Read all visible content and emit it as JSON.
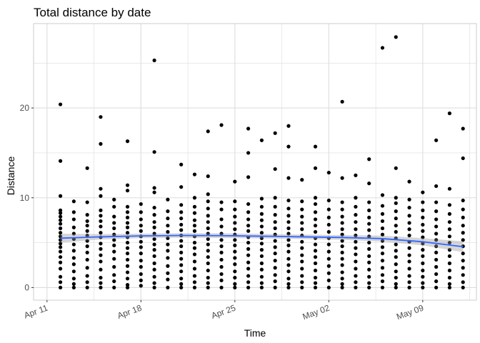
{
  "chart_data": {
    "type": "scatter",
    "title": "Total distance by date",
    "xlabel": "Time",
    "ylabel": "Distance",
    "x_ticks": [
      "Apr 11",
      "Apr 18",
      "Apr 25",
      "May 02",
      "May 09"
    ],
    "x_tick_dates": [
      "2016-04-11",
      "2016-04-18",
      "2016-04-25",
      "2016-05-02",
      "2016-05-09"
    ],
    "y_ticks": [
      0,
      10,
      20
    ],
    "xlim": [
      "2016-04-10",
      "2016-05-13"
    ],
    "ylim": [
      -1.4,
      29.4
    ],
    "grid": true,
    "theme": "light",
    "colors": {
      "points": "#000000",
      "smooth_line": "#3366FF",
      "confidence_band": "#999999",
      "grid": "#dddddd",
      "panel_border": "#cccccc"
    },
    "series": [
      {
        "name": "",
        "kind": "points",
        "date_values": [
          {
            "date": "2016-04-12",
            "y": [
              0,
              0.6,
              1.2,
              2.1,
              2.8,
              3.4,
              4.0,
              4.5,
              4.9,
              5.3,
              5.7,
              6.1,
              6.6,
              7.1,
              7.5,
              7.9,
              8.3,
              8.6,
              10.2,
              14.1,
              20.4
            ]
          },
          {
            "date": "2016-04-13",
            "y": [
              0,
              0.4,
              1.0,
              1.8,
              2.6,
              3.3,
              4.1,
              4.8,
              5.4,
              6.0,
              6.7,
              7.6,
              8.4,
              9.6
            ]
          },
          {
            "date": "2016-04-14",
            "y": [
              0,
              0.6,
              1.3,
              2.2,
              3.1,
              3.9,
              4.6,
              5.2,
              5.8,
              6.3,
              6.9,
              7.4,
              8.1,
              9.5,
              13.3
            ]
          },
          {
            "date": "2016-04-15",
            "y": [
              0,
              0.5,
              1.1,
              2.0,
              2.9,
              3.6,
              4.3,
              4.9,
              5.6,
              6.1,
              6.8,
              7.4,
              8.0,
              8.6,
              10.2,
              11.0,
              16.0,
              19.0
            ]
          },
          {
            "date": "2016-04-16",
            "y": [
              0,
              0.7,
              1.4,
              2.3,
              3.2,
              4.0,
              4.7,
              5.3,
              5.9,
              6.6,
              7.2,
              7.9,
              9.0,
              9.8
            ]
          },
          {
            "date": "2016-04-17",
            "y": [
              0,
              0.3,
              1.0,
              1.7,
              2.4,
              3.1,
              3.8,
              4.4,
              5.0,
              5.6,
              6.1,
              6.7,
              7.2,
              7.8,
              8.4,
              9.0,
              10.8,
              11.4,
              16.3
            ]
          },
          {
            "date": "2016-04-18",
            "y": [
              0.2,
              0.8,
              1.5,
              2.3,
              3.0,
              3.8,
              4.5,
              5.1,
              5.7,
              6.3,
              6.9,
              7.6,
              8.4,
              9.3
            ]
          },
          {
            "date": "2016-04-19",
            "y": [
              0,
              0.5,
              1.2,
              2.0,
              2.7,
              3.5,
              4.2,
              4.8,
              5.4,
              6.0,
              6.7,
              7.3,
              8.1,
              8.9,
              10.6,
              11.1,
              15.1,
              25.3
            ]
          },
          {
            "date": "2016-04-20",
            "y": [
              0,
              0.9,
              1.6,
              2.4,
              3.3,
              4.1,
              4.8,
              5.5,
              6.2,
              6.9,
              7.7,
              8.5,
              9.8
            ]
          },
          {
            "date": "2016-04-21",
            "y": [
              0,
              0.4,
              1.0,
              1.8,
              2.5,
              3.2,
              3.9,
              4.6,
              5.2,
              5.8,
              6.4,
              7.0,
              7.7,
              8.4,
              9.2,
              11.2,
              13.7
            ]
          },
          {
            "date": "2016-04-22",
            "y": [
              0,
              0.6,
              1.3,
              2.1,
              2.9,
              3.7,
              4.4,
              5.0,
              5.7,
              6.3,
              6.9,
              7.5,
              8.3,
              9.0,
              10.0,
              12.6
            ]
          },
          {
            "date": "2016-04-23",
            "y": [
              0,
              0.5,
              1.1,
              1.9,
              2.7,
              3.4,
              4.1,
              4.8,
              5.4,
              6.0,
              6.6,
              7.3,
              8.0,
              8.8,
              9.6,
              10.4,
              12.4,
              17.4
            ]
          },
          {
            "date": "2016-04-24",
            "y": [
              0,
              0.8,
              1.5,
              2.3,
              3.1,
              3.9,
              4.6,
              5.3,
              6.0,
              6.8,
              7.6,
              8.7,
              9.5,
              18.1
            ]
          },
          {
            "date": "2016-04-25",
            "y": [
              0,
              0.4,
              1.1,
              1.8,
              2.6,
              3.3,
              4.0,
              4.7,
              5.3,
              5.9,
              6.5,
              7.2,
              7.9,
              8.7,
              9.6,
              11.8
            ]
          },
          {
            "date": "2016-04-26",
            "y": [
              0,
              0.6,
              1.3,
              2.1,
              2.8,
              3.6,
              4.3,
              5.0,
              5.6,
              6.3,
              6.9,
              7.6,
              8.4,
              9.3,
              12.3,
              15.0,
              17.7
            ]
          },
          {
            "date": "2016-04-27",
            "y": [
              0,
              0.5,
              1.2,
              2.0,
              2.7,
              3.5,
              4.2,
              4.9,
              5.5,
              6.1,
              6.8,
              7.5,
              8.2,
              9.0,
              9.9,
              16.4
            ]
          },
          {
            "date": "2016-04-28",
            "y": [
              0,
              0.7,
              1.4,
              2.2,
              3.0,
              3.8,
              4.5,
              5.2,
              5.9,
              6.6,
              7.3,
              8.1,
              9.0,
              10.0,
              13.2,
              17.2
            ]
          },
          {
            "date": "2016-04-29",
            "y": [
              0,
              0.4,
              1.0,
              1.8,
              2.5,
              3.2,
              4.0,
              4.7,
              5.3,
              6.0,
              6.6,
              7.3,
              8.0,
              8.8,
              9.7,
              12.2,
              15.7,
              18.0
            ]
          },
          {
            "date": "2016-04-30",
            "y": [
              0,
              0.6,
              1.3,
              2.1,
              2.9,
              3.6,
              4.4,
              5.1,
              5.8,
              6.5,
              7.2,
              7.9,
              8.7,
              9.6,
              12.0
            ]
          },
          {
            "date": "2016-05-01",
            "y": [
              0,
              0.5,
              1.1,
              1.9,
              2.7,
              3.4,
              4.1,
              4.8,
              5.5,
              6.2,
              6.9,
              7.6,
              8.4,
              9.3,
              10.0,
              13.3,
              15.7
            ]
          },
          {
            "date": "2016-05-02",
            "y": [
              0,
              0.8,
              1.6,
              2.4,
              3.2,
              4.0,
              4.8,
              5.5,
              6.2,
              7.0,
              7.8,
              8.7,
              9.7,
              12.8
            ]
          },
          {
            "date": "2016-05-03",
            "y": [
              0,
              0.4,
              1.0,
              1.7,
              2.5,
              3.2,
              3.9,
              4.6,
              5.2,
              5.9,
              6.5,
              7.2,
              7.9,
              8.7,
              9.5,
              12.2,
              20.7
            ]
          },
          {
            "date": "2016-05-04",
            "y": [
              0,
              0.6,
              1.3,
              2.1,
              2.9,
              3.7,
              4.4,
              5.1,
              5.8,
              6.5,
              7.3,
              8.1,
              9.0,
              10.0,
              12.5
            ]
          },
          {
            "date": "2016-05-05",
            "y": [
              0,
              0.5,
              1.2,
              2.0,
              2.8,
              3.5,
              4.3,
              5.0,
              5.7,
              6.4,
              7.1,
              7.8,
              8.6,
              9.5,
              11.6,
              14.3
            ]
          },
          {
            "date": "2016-05-06",
            "y": [
              0,
              0.7,
              1.4,
              2.2,
              3.0,
              3.8,
              4.5,
              5.2,
              5.9,
              6.6,
              7.4,
              8.2,
              9.1,
              10.3,
              26.7
            ]
          },
          {
            "date": "2016-05-07",
            "y": [
              0,
              0.4,
              1.1,
              1.8,
              2.6,
              3.4,
              4.1,
              4.8,
              5.5,
              6.2,
              6.9,
              7.7,
              8.5,
              9.4,
              10.0,
              13.3,
              27.9
            ]
          },
          {
            "date": "2016-05-08",
            "y": [
              0,
              0.6,
              1.3,
              2.1,
              2.9,
              3.6,
              4.4,
              5.1,
              5.8,
              6.5,
              7.2,
              8.0,
              8.9,
              9.8,
              11.8
            ]
          },
          {
            "date": "2016-05-09",
            "y": [
              0,
              0.5,
              1.2,
              1.9,
              2.7,
              3.5,
              4.2,
              4.9,
              5.6,
              6.3,
              7.0,
              7.8,
              8.6,
              9.5,
              10.6
            ]
          },
          {
            "date": "2016-05-10",
            "y": [
              0,
              0.7,
              1.5,
              2.3,
              3.1,
              3.9,
              4.6,
              5.3,
              6.0,
              6.8,
              7.6,
              8.5,
              9.5,
              11.3,
              16.4
            ]
          },
          {
            "date": "2016-05-11",
            "y": [
              0,
              0.4,
              1.1,
              1.9,
              2.7,
              3.5,
              4.2,
              5.0,
              5.7,
              6.5,
              7.3,
              8.2,
              9.2,
              11.0,
              19.4
            ]
          },
          {
            "date": "2016-05-12",
            "y": [
              0,
              0.6,
              1.4,
              2.2,
              3.0,
              3.8,
              4.6,
              5.3,
              6.1,
              6.9,
              7.8,
              8.7,
              9.7,
              14.4,
              17.7
            ]
          }
        ]
      },
      {
        "name": "",
        "kind": "smooth",
        "x_dates": [
          "2016-04-12",
          "2016-04-15",
          "2016-04-18",
          "2016-04-21",
          "2016-04-24",
          "2016-04-27",
          "2016-04-30",
          "2016-05-03",
          "2016-05-06",
          "2016-05-09",
          "2016-05-12"
        ],
        "y": [
          5.5,
          5.65,
          5.75,
          5.8,
          5.78,
          5.72,
          5.65,
          5.58,
          5.45,
          5.1,
          4.55
        ],
        "band_low": [
          5.0,
          5.35,
          5.5,
          5.55,
          5.52,
          5.47,
          5.4,
          5.32,
          5.12,
          4.7,
          3.95
        ],
        "band_high": [
          6.0,
          5.95,
          6.0,
          6.05,
          6.04,
          5.97,
          5.9,
          5.84,
          5.78,
          5.5,
          5.15
        ]
      }
    ]
  }
}
